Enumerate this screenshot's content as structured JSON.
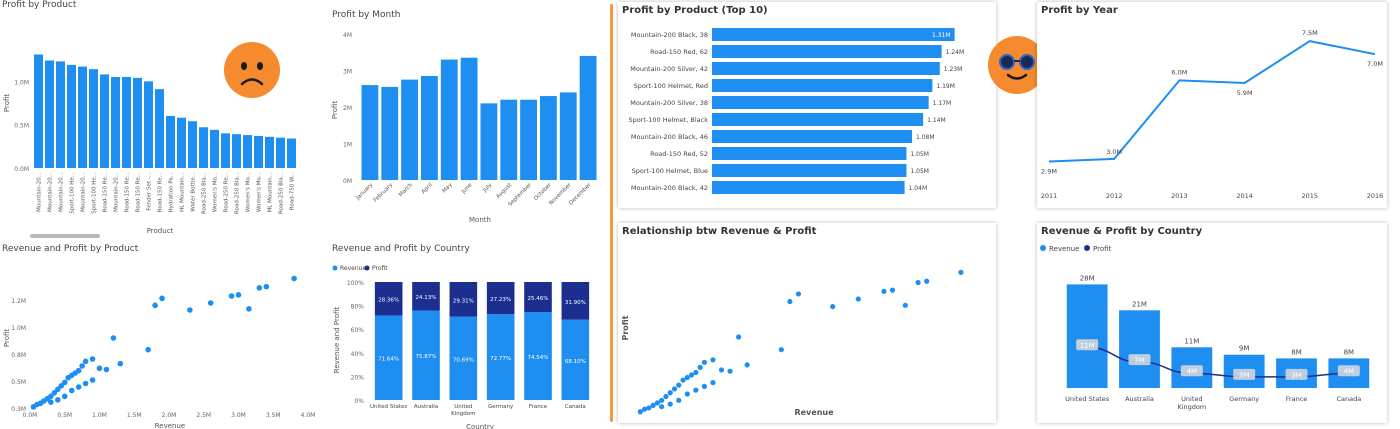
{
  "colors": {
    "bar": "#1f8ef1",
    "revenue": "#1f8ef1",
    "profit": "#1c2f8f",
    "text": "#444444",
    "emoji": "#f58a2e",
    "divider": "#f39a3a"
  },
  "icons": [
    "sad-face-icon",
    "cool-sunglasses-face-icon"
  ],
  "panels": {
    "p1": {
      "title": "Profit by Product"
    },
    "p2": {
      "title": "Profit by Month"
    },
    "p3": {
      "title": "Revenue and Profit by Product"
    },
    "p4": {
      "title": "Revenue and Profit by Country"
    },
    "p5": {
      "title": "Profit by Product (Top 10)"
    },
    "p6": {
      "title": "Profit by Year"
    },
    "p7": {
      "title": "Relationship btw Revenue & Profit"
    },
    "p8": {
      "title": "Revenue & Profit by Country"
    }
  },
  "chart_data": [
    {
      "id": "profit_by_product",
      "type": "bar",
      "title": "Profit by Product",
      "xlabel": "Product",
      "ylabel": "Profit",
      "ylim": [
        0,
        1500000
      ],
      "yticks": [
        "0.0M",
        "0.5M",
        "1.0M"
      ],
      "categories": [
        "Mountain-20...",
        "Mountain-20...",
        "Mountain-20...",
        "Sport-100 He...",
        "Mountain-20...",
        "Sport-100 He...",
        "Road-150 Re...",
        "Mountain-20...",
        "Road-150 Re...",
        "Road-150 Re...",
        "Fender Set -...",
        "Road-150 Re...",
        "Hydration Pa...",
        "HL Mountain...",
        "Water Bottle...",
        "Road-250 Bla...",
        "Women's Mo...",
        "Road-250 Re...",
        "Road-250 Bla...",
        "Women's Mo...",
        "Women's Mo...",
        "ML Mountain...",
        "Road-250 Bla...",
        "Road-750 W..."
      ],
      "values": [
        1310000,
        1240000,
        1230000,
        1190000,
        1170000,
        1140000,
        1080000,
        1050000,
        1050000,
        1040000,
        1000000,
        910000,
        600000,
        580000,
        540000,
        470000,
        440000,
        400000,
        390000,
        380000,
        370000,
        360000,
        350000,
        340000
      ]
    },
    {
      "id": "profit_by_month",
      "type": "bar",
      "title": "Profit by Month",
      "xlabel": "Month",
      "ylabel": "Profit",
      "ylim": [
        0,
        4000000
      ],
      "yticks": [
        "0M",
        "1M",
        "2M",
        "3M",
        "4M"
      ],
      "categories": [
        "January",
        "February",
        "March",
        "April",
        "May",
        "June",
        "July",
        "August",
        "September",
        "October",
        "November",
        "December"
      ],
      "values": [
        2600000,
        2550000,
        2750000,
        2850000,
        3300000,
        3350000,
        2100000,
        2200000,
        2200000,
        2300000,
        2400000,
        3400000
      ]
    },
    {
      "id": "revenue_profit_by_product",
      "type": "scatter",
      "title": "Revenue and Profit by Product",
      "xlabel": "Revenue",
      "ylabel": "Profit",
      "xlim": [
        0,
        4000000
      ],
      "ylim": [
        200000,
        1400000
      ],
      "xticks": [
        "0.0M",
        "0.5M",
        "1.0M",
        "1.5M",
        "2.0M",
        "2.5M",
        "3.0M",
        "3.5M",
        "4.0M"
      ],
      "yticks": [
        "0.3M",
        "0.5M",
        "0.8M",
        "1.0M",
        "1.2M"
      ],
      "points": [
        [
          50000,
          210000
        ],
        [
          100000,
          230000
        ],
        [
          150000,
          240000
        ],
        [
          200000,
          260000
        ],
        [
          250000,
          280000
        ],
        [
          300000,
          300000
        ],
        [
          350000,
          330000
        ],
        [
          400000,
          360000
        ],
        [
          450000,
          390000
        ],
        [
          500000,
          420000
        ],
        [
          550000,
          460000
        ],
        [
          600000,
          480000
        ],
        [
          650000,
          500000
        ],
        [
          700000,
          520000
        ],
        [
          750000,
          560000
        ],
        [
          800000,
          600000
        ],
        [
          900000,
          620000
        ],
        [
          1000000,
          540000
        ],
        [
          1100000,
          530000
        ],
        [
          1200000,
          800000
        ],
        [
          1300000,
          580000
        ],
        [
          300000,
          250000
        ],
        [
          400000,
          270000
        ],
        [
          500000,
          300000
        ],
        [
          600000,
          350000
        ],
        [
          700000,
          380000
        ],
        [
          800000,
          410000
        ],
        [
          900000,
          440000
        ],
        [
          1700000,
          700000
        ],
        [
          1800000,
          1080000
        ],
        [
          1900000,
          1140000
        ],
        [
          2300000,
          1040000
        ],
        [
          2600000,
          1100000
        ],
        [
          2900000,
          1160000
        ],
        [
          3000000,
          1170000
        ],
        [
          3150000,
          1050000
        ],
        [
          3300000,
          1230000
        ],
        [
          3400000,
          1240000
        ],
        [
          3800000,
          1310000
        ]
      ]
    },
    {
      "id": "revenue_profit_by_country_pct",
      "type": "bar",
      "title": "Revenue and Profit by Country",
      "xlabel": "Country",
      "ylabel": "Revenue and Profit",
      "ylim": [
        0,
        100
      ],
      "yticks": [
        "0%",
        "20%",
        "40%",
        "60%",
        "80%",
        "100%"
      ],
      "legend": [
        "Revenue",
        "Profit"
      ],
      "legend_position": "top-left",
      "categories": [
        "United States",
        "Australia",
        "United Kingdom",
        "Germany",
        "France",
        "Canada"
      ],
      "series": [
        {
          "name": "Revenue",
          "values": [
            71.64,
            75.87,
            70.69,
            72.77,
            74.54,
            68.1
          ],
          "labels": [
            "71.64%",
            "75.87%",
            "70.69%",
            "72.77%",
            "74.54%",
            "68.10%"
          ]
        },
        {
          "name": "Profit",
          "values": [
            28.36,
            24.13,
            29.31,
            27.23,
            25.46,
            31.9
          ],
          "labels": [
            "28.36%",
            "24.13%",
            "29.31%",
            "27.23%",
            "25.46%",
            "31.90%"
          ]
        }
      ]
    },
    {
      "id": "profit_by_product_top10",
      "type": "bar",
      "orientation": "horizontal",
      "title": "Profit by Product (Top 10)",
      "categories": [
        "Mountain-200 Black, 38",
        "Road-150 Red, 62",
        "Mountain-200 Silver, 42",
        "Sport-100 Helmet, Red",
        "Mountain-200 Silver, 38",
        "Sport-100 Helmet, Black",
        "Mountain-200 Black, 46",
        "Road-150 Red, 52",
        "Sport-100 Helmet, Blue",
        "Mountain-200 Black, 42"
      ],
      "values": [
        1310000,
        1240000,
        1230000,
        1190000,
        1170000,
        1140000,
        1080000,
        1050000,
        1050000,
        1040000
      ],
      "labels": [
        "1.31M",
        "1.24M",
        "1.23M",
        "1.19M",
        "1.17M",
        "1.14M",
        "1.08M",
        "1.05M",
        "1.05M",
        "1.04M"
      ]
    },
    {
      "id": "profit_by_year",
      "type": "line",
      "title": "Profit by Year",
      "x": [
        "2011",
        "2012",
        "2013",
        "2014",
        "2015",
        "2016"
      ],
      "values": [
        2900000,
        3000000,
        6000000,
        5900000,
        7500000,
        7000000
      ],
      "labels": [
        "2.9M",
        "3.0M",
        "6.0M",
        "5.9M",
        "7.5M",
        "7.0M"
      ],
      "ylim": [
        2500000,
        8000000
      ]
    },
    {
      "id": "relationship_revenue_profit",
      "type": "scatter",
      "title": "Relationship btw Revenue & Profit",
      "xlabel": "Revenue",
      "ylabel": "Profit",
      "xlim": [
        0,
        4000000
      ],
      "ylim": [
        200000,
        1400000
      ],
      "points": [
        [
          50000,
          210000
        ],
        [
          100000,
          230000
        ],
        [
          150000,
          240000
        ],
        [
          200000,
          260000
        ],
        [
          250000,
          280000
        ],
        [
          300000,
          300000
        ],
        [
          350000,
          330000
        ],
        [
          400000,
          360000
        ],
        [
          450000,
          390000
        ],
        [
          500000,
          420000
        ],
        [
          550000,
          460000
        ],
        [
          600000,
          480000
        ],
        [
          650000,
          500000
        ],
        [
          700000,
          520000
        ],
        [
          750000,
          560000
        ],
        [
          800000,
          600000
        ],
        [
          900000,
          620000
        ],
        [
          1000000,
          540000
        ],
        [
          1100000,
          530000
        ],
        [
          1200000,
          800000
        ],
        [
          1300000,
          580000
        ],
        [
          300000,
          250000
        ],
        [
          400000,
          270000
        ],
        [
          500000,
          300000
        ],
        [
          600000,
          350000
        ],
        [
          700000,
          380000
        ],
        [
          800000,
          410000
        ],
        [
          900000,
          440000
        ],
        [
          1700000,
          700000
        ],
        [
          1800000,
          1080000
        ],
        [
          1900000,
          1140000
        ],
        [
          2300000,
          1040000
        ],
        [
          2600000,
          1100000
        ],
        [
          2900000,
          1160000
        ],
        [
          3000000,
          1170000
        ],
        [
          3150000,
          1050000
        ],
        [
          3300000,
          1230000
        ],
        [
          3400000,
          1240000
        ],
        [
          3800000,
          1310000
        ]
      ]
    },
    {
      "id": "revenue_profit_by_country",
      "type": "bar",
      "title": "Revenue & Profit by Country",
      "legend": [
        "Revenue",
        "Profit"
      ],
      "legend_position": "top-left",
      "categories": [
        "United States",
        "Australia",
        "United Kingdom",
        "Germany",
        "France",
        "Canada"
      ],
      "ylim": [
        0,
        30000000
      ],
      "series": [
        {
          "name": "Revenue",
          "type": "bar",
          "values": [
            28000000,
            21000000,
            11000000,
            9000000,
            8000000,
            8000000
          ],
          "labels": [
            "28M",
            "21M",
            "11M",
            "9M",
            "8M",
            "8M"
          ]
        },
        {
          "name": "Profit",
          "type": "line",
          "values": [
            11000000,
            7000000,
            4000000,
            3000000,
            3000000,
            4000000
          ],
          "labels": [
            "11M",
            "7M",
            "4M",
            "3M",
            "3M",
            "4M"
          ]
        }
      ]
    }
  ]
}
